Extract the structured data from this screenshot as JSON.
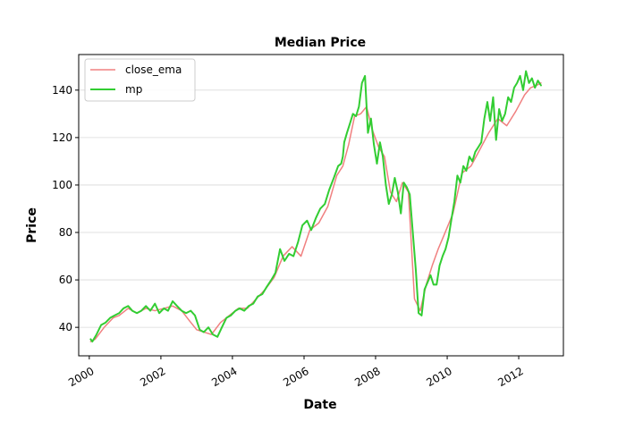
{
  "chart_data": {
    "type": "line",
    "title": "Median Price",
    "xlabel": "Date",
    "ylabel": "Price",
    "xlim": [
      "1999-09-15",
      "2013-04-01"
    ],
    "ylim": [
      28,
      155
    ],
    "grid": "y-only",
    "legend_placement": "top-left",
    "x_ticks": [
      {
        "date": "2000-01-01",
        "label": "2000"
      },
      {
        "date": "2002-01-01",
        "label": "2002"
      },
      {
        "date": "2004-01-01",
        "label": "2004"
      },
      {
        "date": "2006-01-01",
        "label": "2006"
      },
      {
        "date": "2008-01-01",
        "label": "2008"
      },
      {
        "date": "2010-01-01",
        "label": "2010"
      },
      {
        "date": "2012-01-01",
        "label": "2012"
      }
    ],
    "y_ticks": [
      40,
      60,
      80,
      100,
      120,
      140
    ],
    "series": [
      {
        "name": "close_ema",
        "color": "#f08080",
        "x": [
          "2000-01-15",
          "2000-03-01",
          "2000-06-01",
          "2000-09-01",
          "2000-11-01",
          "2001-02-01",
          "2001-05-01",
          "2001-08-01",
          "2001-11-01",
          "2002-02-01",
          "2002-05-01",
          "2002-08-01",
          "2002-10-15",
          "2003-01-01",
          "2003-03-15",
          "2003-06-01",
          "2003-09-01",
          "2003-12-01",
          "2004-03-01",
          "2004-06-01",
          "2004-09-01",
          "2004-12-01",
          "2005-03-01",
          "2005-06-01",
          "2005-09-01",
          "2005-12-01",
          "2006-03-01",
          "2006-06-01",
          "2006-09-01",
          "2006-12-01",
          "2007-02-01",
          "2007-04-01",
          "2007-06-01",
          "2007-08-01",
          "2007-10-01",
          "2007-12-01",
          "2008-02-01",
          "2008-04-01",
          "2008-06-01",
          "2008-08-01",
          "2008-10-01",
          "2008-12-01",
          "2009-02-01",
          "2009-04-01",
          "2009-06-01",
          "2009-08-01",
          "2009-10-01",
          "2009-12-01",
          "2010-03-01",
          "2010-06-01",
          "2010-09-01",
          "2010-12-01",
          "2011-03-01",
          "2011-06-01",
          "2011-09-01",
          "2011-12-01",
          "2012-03-01",
          "2012-05-01",
          "2012-07-01",
          "2012-08-15"
        ],
        "values": [
          34,
          35,
          40,
          44,
          45,
          48,
          46,
          48,
          47,
          48,
          49,
          47,
          43,
          39,
          38,
          37,
          42,
          45,
          48,
          48,
          52,
          56,
          61,
          70,
          74,
          70,
          81,
          84,
          91,
          104,
          108,
          117,
          129,
          130,
          133,
          123,
          116,
          112,
          97,
          93,
          101,
          97,
          52,
          47,
          58,
          66,
          73,
          79,
          88,
          105,
          108,
          115,
          122,
          128,
          125,
          131,
          138,
          141,
          142,
          143
        ]
      },
      {
        "name": "mp",
        "color": "#32cd32",
        "x": [
          "2000-01-15",
          "2000-02-01",
          "2000-03-15",
          "2000-05-01",
          "2000-06-15",
          "2000-08-01",
          "2000-09-15",
          "2000-11-01",
          "2000-12-15",
          "2001-02-01",
          "2001-03-15",
          "2001-05-01",
          "2001-06-15",
          "2001-08-01",
          "2001-09-15",
          "2001-11-01",
          "2001-12-15",
          "2002-02-01",
          "2002-03-15",
          "2002-05-01",
          "2002-06-15",
          "2002-08-01",
          "2002-09-15",
          "2002-11-01",
          "2002-12-15",
          "2003-02-01",
          "2003-03-15",
          "2003-05-01",
          "2003-06-15",
          "2003-08-01",
          "2003-09-15",
          "2003-11-01",
          "2003-12-15",
          "2004-02-01",
          "2004-03-15",
          "2004-05-01",
          "2004-06-15",
          "2004-08-01",
          "2004-09-15",
          "2004-11-01",
          "2004-12-15",
          "2005-02-01",
          "2005-03-15",
          "2005-05-01",
          "2005-06-15",
          "2005-08-01",
          "2005-09-15",
          "2005-11-01",
          "2005-12-15",
          "2006-02-01",
          "2006-03-15",
          "2006-05-01",
          "2006-06-15",
          "2006-08-01",
          "2006-09-15",
          "2006-11-01",
          "2006-12-15",
          "2007-01-15",
          "2007-02-01",
          "2007-02-15",
          "2007-03-15",
          "2007-04-15",
          "2007-05-15",
          "2007-06-15",
          "2007-07-15",
          "2007-08-15",
          "2007-09-15",
          "2007-10-15",
          "2007-11-15",
          "2007-12-15",
          "2008-01-15",
          "2008-02-15",
          "2008-03-15",
          "2008-04-15",
          "2008-05-15",
          "2008-06-15",
          "2008-07-15",
          "2008-08-15",
          "2008-09-15",
          "2008-10-15",
          "2008-11-15",
          "2008-12-15",
          "2009-01-15",
          "2009-02-15",
          "2009-03-15",
          "2009-04-15",
          "2009-05-15",
          "2009-06-15",
          "2009-07-15",
          "2009-08-15",
          "2009-09-15",
          "2009-10-15",
          "2009-11-15",
          "2009-12-15",
          "2010-01-15",
          "2010-02-15",
          "2010-03-15",
          "2010-04-15",
          "2010-05-15",
          "2010-06-15",
          "2010-07-15",
          "2010-08-15",
          "2010-09-15",
          "2010-10-15",
          "2010-11-15",
          "2010-12-15",
          "2011-01-15",
          "2011-02-15",
          "2011-03-15",
          "2011-04-15",
          "2011-05-15",
          "2011-06-15",
          "2011-07-15",
          "2011-08-15",
          "2011-09-15",
          "2011-10-15",
          "2011-11-15",
          "2011-12-15",
          "2012-01-15",
          "2012-02-15",
          "2012-03-15",
          "2012-04-15",
          "2012-05-15",
          "2012-06-15",
          "2012-07-15",
          "2012-08-15"
        ],
        "values": [
          35,
          34,
          37,
          41,
          42,
          44,
          45,
          46,
          48,
          49,
          47,
          46,
          47,
          49,
          47,
          50,
          46,
          48,
          47,
          51,
          49,
          47,
          46,
          47,
          45,
          39,
          38,
          40,
          37,
          36,
          40,
          44,
          45,
          47,
          48,
          47,
          49,
          50,
          53,
          54,
          57,
          60,
          63,
          73,
          68,
          71,
          70,
          76,
          83,
          85,
          81,
          86,
          90,
          92,
          98,
          103,
          108,
          109,
          112,
          118,
          122,
          126,
          130,
          129,
          133,
          143,
          146,
          122,
          128,
          117,
          109,
          118,
          112,
          100,
          92,
          96,
          103,
          97,
          88,
          101,
          99,
          96,
          80,
          64,
          46,
          45,
          56,
          59,
          62,
          58,
          58,
          66,
          70,
          73,
          78,
          86,
          93,
          104,
          101,
          108,
          106,
          112,
          110,
          114,
          116,
          118,
          128,
          135,
          127,
          137,
          119,
          132,
          127,
          130,
          137,
          135,
          141,
          143,
          146,
          140,
          148,
          143,
          145,
          141,
          144,
          142
        ]
      }
    ]
  }
}
